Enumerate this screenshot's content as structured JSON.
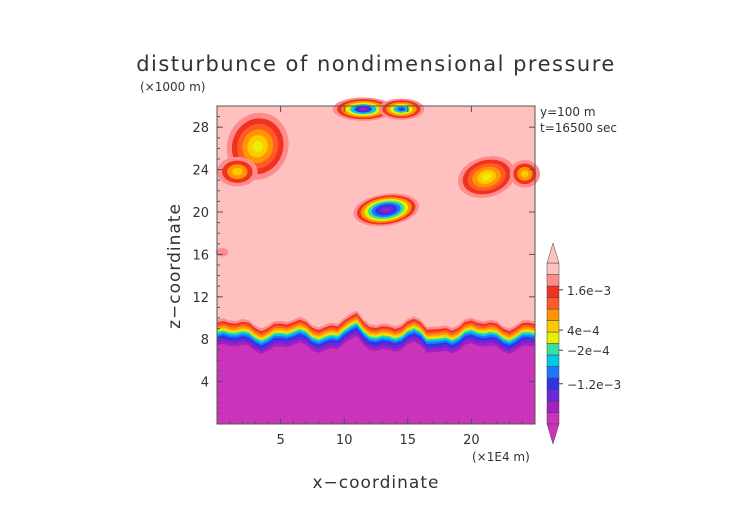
{
  "chart_data": {
    "type": "heatmap",
    "title": "disturbunce of nondimensional pressure",
    "xlabel": "x−coordinate",
    "ylabel": "z−coordinate",
    "x_unit": "(×1E4 m)",
    "y_unit": "(×1000 m)",
    "xlim": [
      0,
      25
    ],
    "ylim": [
      0,
      30
    ],
    "x_ticks": [
      5,
      10,
      15,
      20
    ],
    "y_ticks": [
      4,
      8,
      12,
      16,
      20,
      24,
      28
    ],
    "annotations": [
      "y=100 m",
      "t=16500 sec"
    ],
    "colorbar": {
      "labels": [
        {
          "value": 0.0016,
          "text": "1.6e−3"
        },
        {
          "value": 0.0004,
          "text": "4e−4"
        },
        {
          "value": -0.0002,
          "text": "−2e−4"
        },
        {
          "value": -0.0012,
          "text": "−1.2e−3"
        }
      ],
      "range": [
        -0.0024,
        0.0024
      ],
      "colors": [
        "#cc33bb",
        "#a020c0",
        "#6a28d8",
        "#3333e6",
        "#1e78ff",
        "#00c8e8",
        "#33e0a0",
        "#e6f000",
        "#ffc800",
        "#ff9600",
        "#ff5a28",
        "#f0321e",
        "#ff8c8c",
        "#ffc0c0"
      ]
    },
    "regions": [
      {
        "name": "lower negative layer",
        "value": -0.0018,
        "z_top_approx": 7.5
      },
      {
        "name": "transition band",
        "value": 0.0004,
        "z_approx": 8.8
      },
      {
        "name": "upper background",
        "value": 0.0019
      },
      {
        "name": "core near x=13, z=20",
        "value": -0.0016
      },
      {
        "name": "warm patch x≈3, z≈25",
        "value": 0.0004
      },
      {
        "name": "warm patch x≈21, z≈23",
        "value": 0.0006
      }
    ]
  },
  "colors": {
    "axis": "#333333",
    "background": "#ffffff"
  }
}
